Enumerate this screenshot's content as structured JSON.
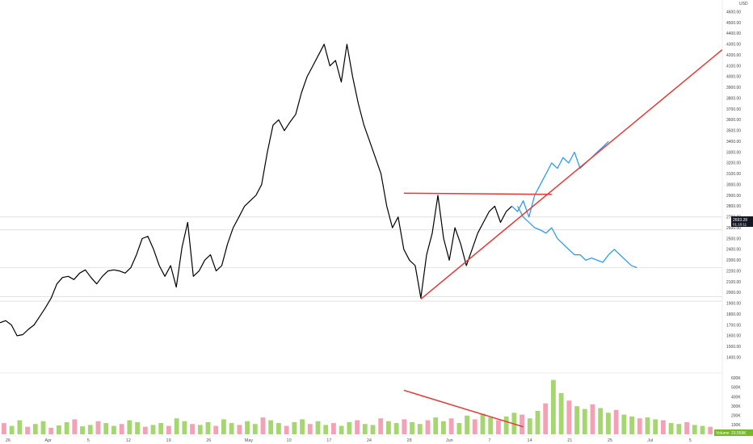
{
  "chart_data": {
    "type": "line",
    "currency": "USD",
    "price_axis": {
      "ticks": [
        "4600.00",
        "4500.00",
        "4400.00",
        "4300.00",
        "4200.00",
        "4100.00",
        "4000.00",
        "3900.00",
        "3800.00",
        "3700.00",
        "3600.00",
        "3500.00",
        "3400.00",
        "3300.00",
        "3200.00",
        "3100.00",
        "3000.00",
        "2900.00",
        "2800.00",
        "2700.00",
        "2600.00",
        "2500.00",
        "2400.00",
        "2300.00",
        "2200.00",
        "2100.00",
        "2000.00",
        "1900.00",
        "1800.00",
        "1700.00",
        "1600.00",
        "1500.00",
        "1400.00"
      ],
      "range": [
        1300,
        4650
      ]
    },
    "volume_axis": {
      "ticks": [
        "600K",
        "500K",
        "400K",
        "300K",
        "200K",
        "100K"
      ],
      "range": [
        0,
        620000
      ]
    },
    "time_axis": {
      "labels": [
        "26",
        "Apr",
        "5",
        "12",
        "19",
        "26",
        "May",
        "10",
        "17",
        "24",
        "28",
        "Jun",
        "7",
        "14",
        "21",
        "25",
        "Jul",
        "5"
      ],
      "day_range": [
        0,
        127
      ]
    },
    "price_label": {
      "value": "2693.28",
      "countdown": "01:10:11"
    },
    "volume_label": {
      "prefix": "Volume",
      "value": "23.559K"
    },
    "series": [
      {
        "style": "black",
        "x": [
          0,
          1,
          2,
          3,
          4,
          5,
          6,
          7,
          8,
          9,
          10,
          11,
          12,
          13,
          14,
          15,
          16,
          17,
          18,
          19,
          20,
          21,
          22,
          23,
          24,
          25,
          26,
          27,
          28,
          29,
          30,
          31,
          32,
          33,
          34,
          35,
          36,
          37,
          38,
          39,
          40,
          41,
          42,
          43,
          44,
          45,
          46,
          47,
          48,
          49,
          50,
          51,
          52,
          53,
          54,
          55,
          56,
          57,
          58,
          59,
          60,
          61,
          62,
          63,
          64,
          65,
          66,
          67,
          68,
          69,
          70,
          71,
          72,
          73,
          74,
          75,
          76,
          77,
          78,
          79,
          80,
          81,
          82,
          83,
          84,
          85,
          86,
          87,
          88,
          89,
          90
        ],
        "y": [
          1720,
          1740,
          1700,
          1600,
          1610,
          1660,
          1700,
          1780,
          1860,
          1950,
          2080,
          2140,
          2150,
          2120,
          2180,
          2210,
          2140,
          2080,
          2150,
          2200,
          2210,
          2200,
          2180,
          2230,
          2350,
          2500,
          2520,
          2400,
          2250,
          2150,
          2250,
          2050,
          2420,
          2650,
          2150,
          2200,
          2300,
          2350,
          2200,
          2250,
          2450,
          2600,
          2700,
          2800,
          2850,
          2900,
          3000,
          3300,
          3550,
          3600,
          3500,
          3580,
          3650,
          3850,
          4000,
          4100,
          4200,
          4300,
          4100,
          4150,
          3950,
          4300,
          4000,
          3750,
          3550,
          3400,
          3250,
          3100,
          2800,
          2600,
          2700,
          2400,
          2300,
          2250,
          1950,
          2350,
          2550,
          2900,
          2500,
          2300,
          2600,
          2450,
          2250,
          2400,
          2550,
          2650,
          2750,
          2800,
          2650,
          2750,
          2800
        ]
      },
      {
        "style": "blue",
        "x": [
          90,
          91,
          92,
          93,
          94,
          95,
          96,
          97,
          98,
          99,
          100,
          101,
          102,
          103,
          104,
          105,
          106,
          107
        ],
        "y": [
          2800,
          2750,
          2850,
          2700,
          2900,
          3000,
          3100,
          3200,
          3150,
          3250,
          3200,
          3300,
          3150,
          3200,
          3250,
          3300,
          3350,
          3400
        ]
      },
      {
        "style": "blue",
        "x": [
          91,
          92,
          93,
          94,
          95,
          96,
          97,
          98,
          99,
          100,
          101,
          102,
          103,
          104,
          105,
          106,
          107,
          108,
          109,
          110,
          111,
          112
        ],
        "y": [
          2800,
          2700,
          2650,
          2600,
          2580,
          2550,
          2600,
          2500,
          2450,
          2400,
          2350,
          2350,
          2300,
          2320,
          2300,
          2280,
          2350,
          2400,
          2350,
          2300,
          2250,
          2230
        ]
      }
    ],
    "annotations": {
      "triangle_top": {
        "x": [
          71,
          97
        ],
        "y": [
          2920,
          2910
        ]
      },
      "support_trend": {
        "x": [
          74,
          127
        ],
        "y": [
          1940,
          4250
        ]
      },
      "volume_trend": {
        "x": [
          71,
          92
        ],
        "y": [
          470000,
          80000
        ]
      }
    },
    "horizontal_levels": [
      2700,
      2580,
      2230,
      1960,
      1920
    ],
    "volume_bars": [
      120000,
      90000,
      150000,
      80000,
      110000,
      140000,
      70000,
      95000,
      130000,
      160000,
      85000,
      100000,
      140000,
      120000,
      90000,
      110000,
      150000,
      130000,
      80000,
      100000,
      120000,
      90000,
      170000,
      140000,
      110000,
      100000,
      130000,
      90000,
      160000,
      120000,
      100000,
      140000,
      110000,
      180000,
      150000,
      120000,
      90000,
      130000,
      160000,
      110000,
      140000,
      100000,
      120000,
      90000,
      130000,
      150000,
      110000,
      100000,
      170000,
      140000,
      120000,
      160000,
      130000,
      110000,
      150000,
      180000,
      140000,
      170000,
      120000,
      200000,
      160000,
      220000,
      180000,
      150000,
      190000,
      230000,
      210000,
      170000,
      250000,
      330000,
      580000,
      440000,
      360000,
      300000,
      270000,
      320000,
      280000,
      230000,
      260000,
      210000,
      190000,
      170000,
      180000,
      160000,
      150000,
      120000,
      110000,
      130000,
      100000,
      90000,
      80000
    ],
    "colors": {
      "price": "#000000",
      "projection": "#2196f3",
      "trend": "#e53935",
      "vol_up": "#a5d66f",
      "vol_down": "#f4a0b5"
    }
  }
}
